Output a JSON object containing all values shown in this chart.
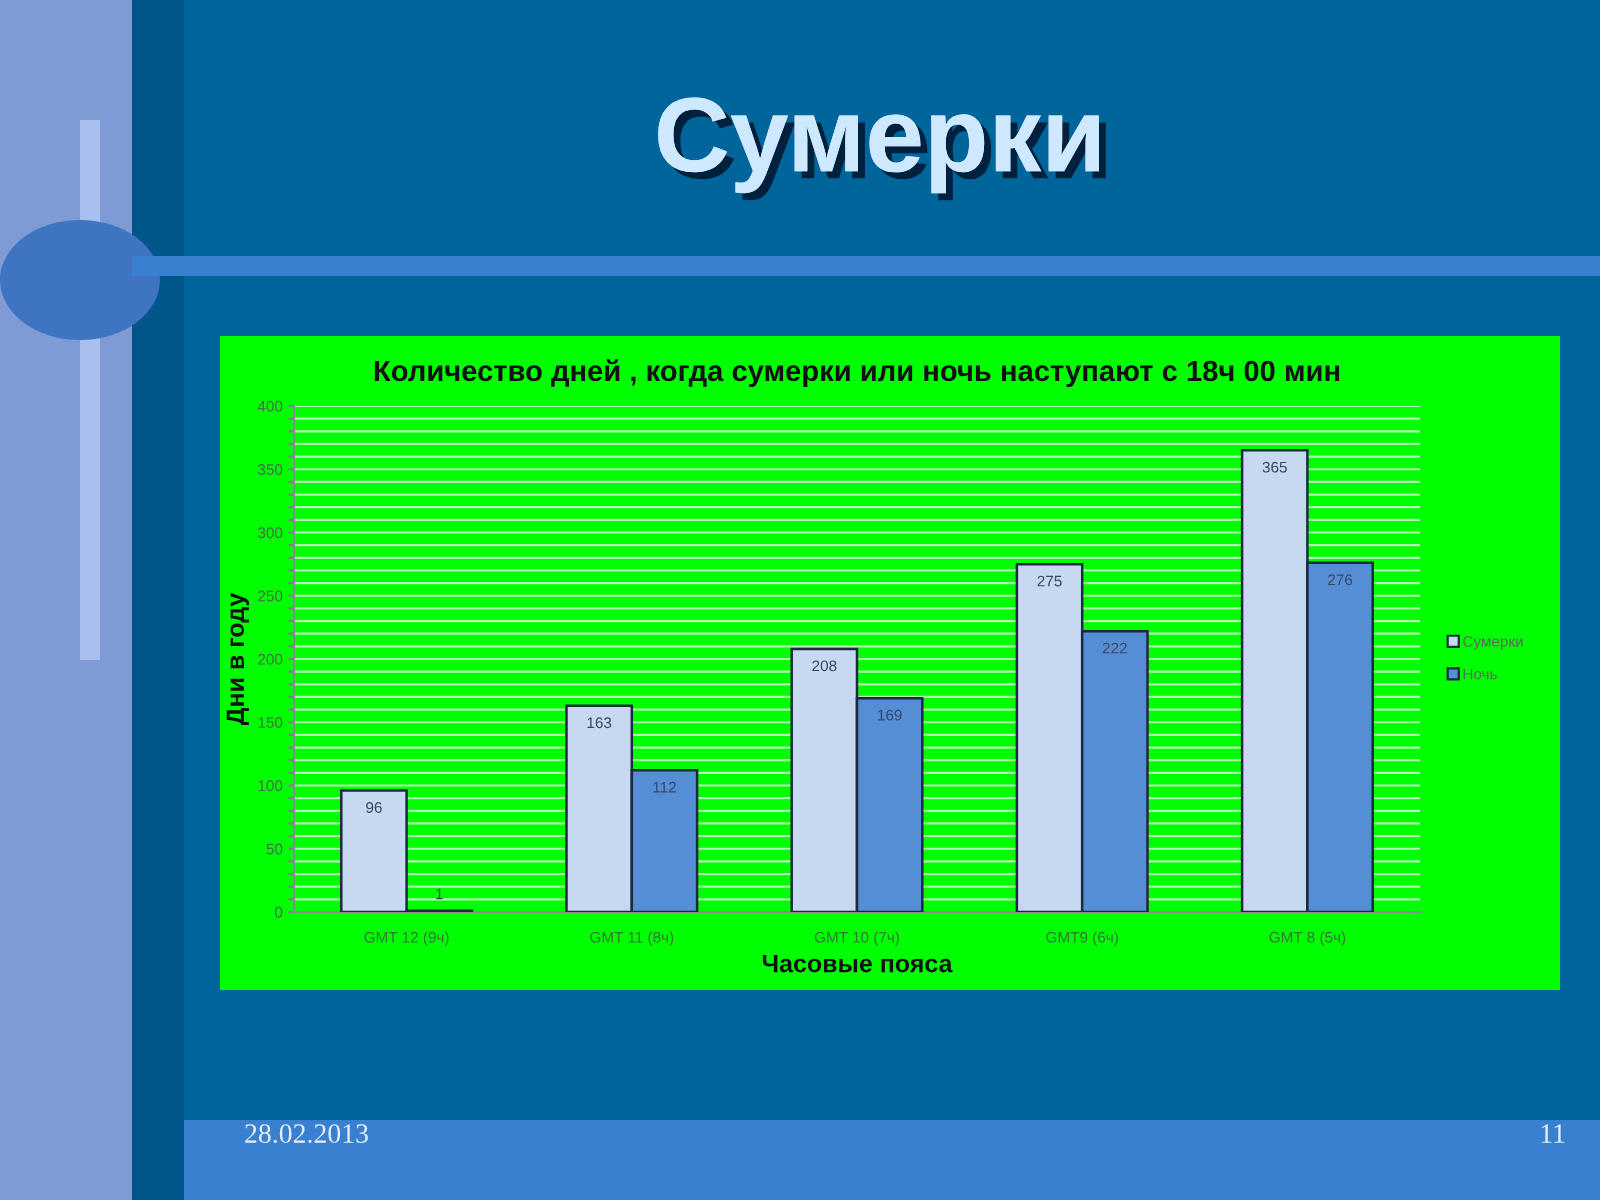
{
  "chart_data": {
    "type": "bar",
    "title": "Сумерки",
    "subtitle": "Количество дней , когда сумерки или ночь наступают с 18ч 00 мин",
    "xlabel": "Часовые пояса",
    "ylabel": "Дни в году",
    "categories": [
      "GMT 12 (9ч)",
      "GMT 11 (8ч)",
      "GMT 10 (7ч)",
      "GMT9 (6ч)",
      "GMT 8 (5ч)"
    ],
    "series": [
      {
        "name": "Сумерки",
        "color": "#c6d9f1",
        "values": [
          96,
          163,
          208,
          275,
          365
        ]
      },
      {
        "name": "Ночь",
        "color": "#558ed5",
        "values": [
          1,
          112,
          169,
          222,
          276
        ]
      }
    ],
    "ylim": [
      0,
      400
    ],
    "yticks": [
      0,
      {
        "value": 10,
        "label": null
      },
      {
        "value": 20,
        "label": null
      },
      {
        "value": 30,
        "label": null
      },
      {
        "value": 40,
        "label": null
      },
      50,
      {
        "value": 60,
        "label": null
      },
      {
        "value": 70,
        "label": null
      },
      {
        "value": 80,
        "label": null
      },
      {
        "value": 90,
        "label": null
      },
      100,
      {
        "value": 110,
        "label": null
      },
      {
        "value": 120,
        "label": null
      },
      {
        "value": 130,
        "label": null
      },
      {
        "value": 140,
        "label": null
      },
      150,
      {
        "value": 160,
        "label": null
      },
      {
        "value": 170,
        "label": null
      },
      {
        "value": 180,
        "label": null
      },
      {
        "value": 190,
        "label": null
      },
      200,
      {
        "value": 210,
        "label": null
      },
      {
        "value": 220,
        "label": null
      },
      {
        "value": 230,
        "label": null
      },
      {
        "value": 240,
        "label": null
      },
      250,
      {
        "value": 260,
        "label": null
      },
      {
        "value": 270,
        "label": null
      },
      {
        "value": 280,
        "label": null
      },
      {
        "value": 290,
        "label": null
      },
      300,
      {
        "value": 310,
        "label": null
      },
      {
        "value": 320,
        "label": null
      },
      {
        "value": 330,
        "label": null
      },
      {
        "value": 340,
        "label": null
      },
      350,
      {
        "value": 360,
        "label": null
      },
      {
        "value": 370,
        "label": null
      },
      {
        "value": 380,
        "label": null
      },
      {
        "value": 390,
        "label": null
      },
      400
    ],
    "grid": "y",
    "legend": "right",
    "data_labels": true,
    "annotations": [
      "28.02.2013",
      "11"
    ]
  }
}
